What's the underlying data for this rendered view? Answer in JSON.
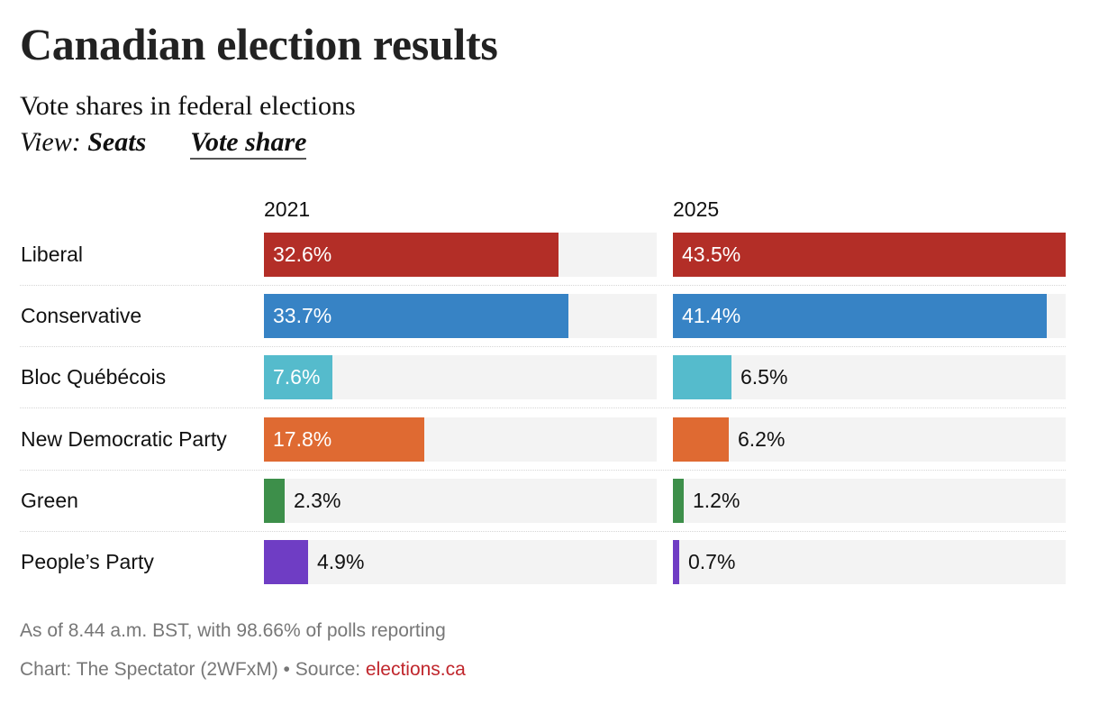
{
  "header": {
    "title": "Canadian election results",
    "subtitle": "Vote shares in federal elections",
    "view_label": "View:",
    "view_options": [
      "Seats",
      "Vote share"
    ],
    "view_selected": "Vote share"
  },
  "chart_data": {
    "type": "bar",
    "orientation": "horizontal",
    "title": "Canadian election results",
    "subtitle": "Vote shares in federal elections",
    "unit": "%",
    "xlim": [
      0,
      43.5
    ],
    "categories": [
      "Liberal",
      "Conservative",
      "Bloc Québécois",
      "New Democratic Party",
      "Green",
      "People’s Party"
    ],
    "colors": [
      "#b32e27",
      "#3783c5",
      "#55bbcc",
      "#df6a32",
      "#3d8f4a",
      "#6f3dc4"
    ],
    "series": [
      {
        "name": "2021",
        "values": [
          32.6,
          33.7,
          7.6,
          17.8,
          2.3,
          4.9
        ],
        "labels": [
          "32.6%",
          "33.7%",
          "7.6%",
          "17.8%",
          "2.3%",
          "4.9%"
        ]
      },
      {
        "name": "2025",
        "values": [
          43.5,
          41.4,
          6.5,
          6.2,
          1.2,
          0.7
        ],
        "labels": [
          "43.5%",
          "41.4%",
          "6.5%",
          "6.2%",
          "1.2%",
          "0.7%"
        ]
      }
    ],
    "track_color": "#f3f3f3",
    "grid": false,
    "legend": "none"
  },
  "footer": {
    "note": "As of 8.44 a.m. BST, with 98.66% of polls reporting",
    "credit_prefix": "Chart: The Spectator (2WFxM) • Source: ",
    "source_link": "elections.ca",
    "link_color": "#c0262c"
  }
}
